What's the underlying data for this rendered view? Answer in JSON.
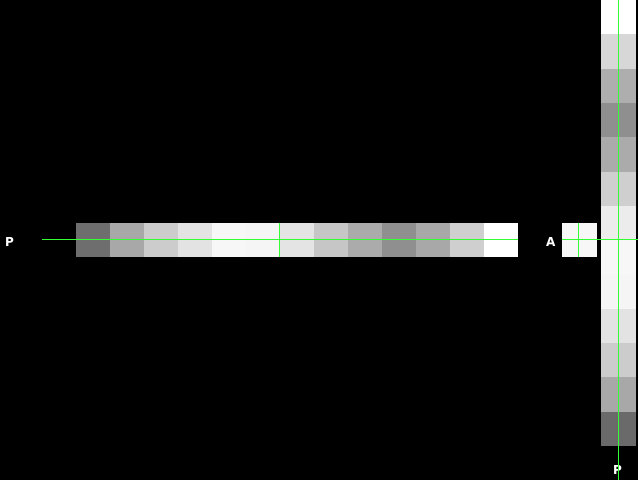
{
  "labels": {
    "left": "P",
    "right": "A",
    "bottom": "P"
  },
  "colors": {
    "background": "#000000",
    "crosshair": "#33ff33",
    "label": "#ffffff"
  },
  "horizontal_strip": {
    "cells": [
      "#6e6e6e",
      "#a8a8a8",
      "#cccccc",
      "#e3e3e3",
      "#f7f7f7",
      "#f5f5f5",
      "#e4e4e4",
      "#c6c6c6",
      "#ababab",
      "#8f8f8f",
      "#a8a8a8",
      "#cfcfcf",
      "#ffffff"
    ]
  },
  "vertical_strip": {
    "cells": [
      "#ffffff",
      "#d7d7d7",
      "#aeaeae",
      "#8f8f8f",
      "#ababab",
      "#cfcfcf",
      "#ececec",
      "#f7f7f7",
      "#f5f5f5",
      "#e3e3e3",
      "#cccccc",
      "#a8a8a8",
      "#6a6a6a"
    ]
  }
}
